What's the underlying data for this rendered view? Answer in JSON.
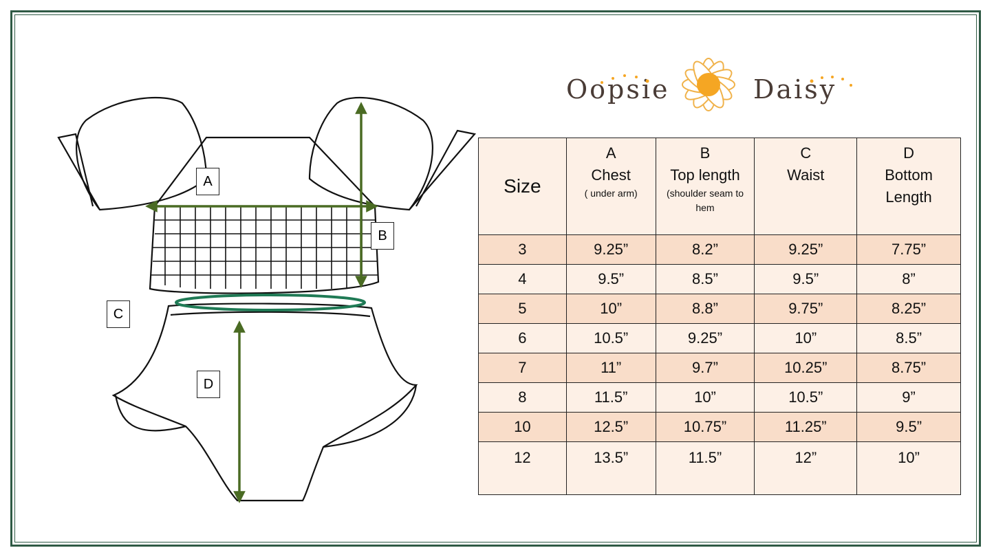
{
  "brand": {
    "name_left": "Oopsie",
    "name_right": "Daisy"
  },
  "colors": {
    "frame": "#2f5a45",
    "arrow": "#4a6b23",
    "waist_ellipse": "#1f7a55",
    "row_dark": "#f9ddc9",
    "row_light": "#fdf0e6",
    "daisy_center": "#f5a623"
  },
  "diagram": {
    "labels": [
      "A",
      "B",
      "C",
      "D"
    ]
  },
  "table": {
    "headers": [
      {
        "letter": "",
        "title": "Size",
        "sub": ""
      },
      {
        "letter": "A",
        "title": "Chest",
        "sub": "( under arm)"
      },
      {
        "letter": "B",
        "title": "Top length",
        "sub": "(shoulder seam to hem"
      },
      {
        "letter": "C",
        "title": "Waist",
        "sub": ""
      },
      {
        "letter": "D",
        "title": "Bottom Length",
        "sub": ""
      }
    ],
    "rows": [
      [
        "3",
        "9.25”",
        "8.2”",
        "9.25”",
        "7.75”"
      ],
      [
        "4",
        "9.5”",
        "8.5”",
        "9.5”",
        "8”"
      ],
      [
        "5",
        "10”",
        "8.8”",
        "9.75”",
        "8.25”"
      ],
      [
        "6",
        "10.5”",
        "9.25”",
        "10”",
        "8.5”"
      ],
      [
        "7",
        "11”",
        "9.7”",
        "10.25”",
        "8.75”"
      ],
      [
        "8",
        "11.5”",
        "10”",
        "10.5”",
        "9”"
      ],
      [
        "10",
        "12.5”",
        "10.75”",
        "11.25”",
        "9.5”"
      ],
      [
        "12",
        "13.5”",
        "11.5”",
        "12”",
        "10”"
      ]
    ]
  }
}
